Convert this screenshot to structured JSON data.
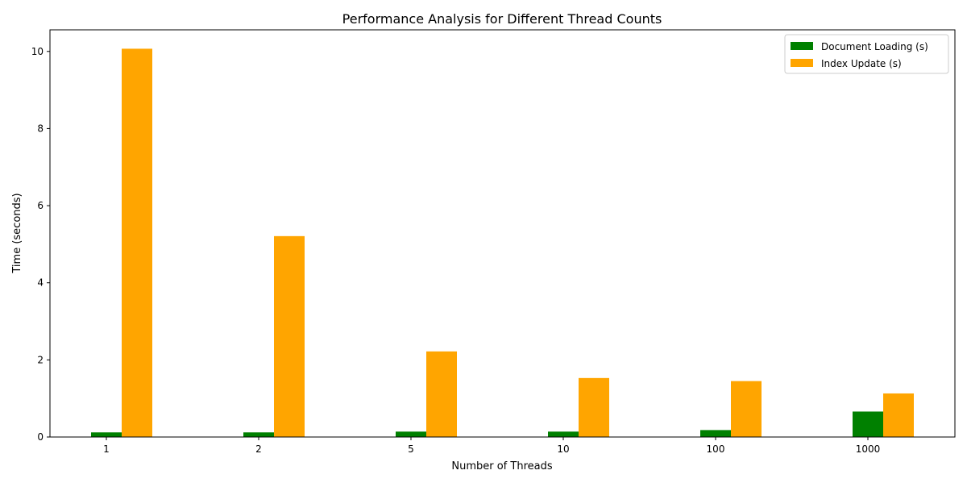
{
  "chart_data": {
    "type": "bar",
    "title": "Performance Analysis for Different Thread Counts",
    "xlabel": "Number of Threads",
    "ylabel": "Time (seconds)",
    "categories": [
      "1",
      "2",
      "5",
      "10",
      "100",
      "1000"
    ],
    "series": [
      {
        "name": "Document Loading (s)",
        "color": "#008000",
        "values": [
          0.12,
          0.12,
          0.14,
          0.14,
          0.18,
          0.66
        ]
      },
      {
        "name": "Index Update (s)",
        "color": "#ffa500",
        "values": [
          10.07,
          5.21,
          2.22,
          1.53,
          1.45,
          1.13
        ]
      }
    ],
    "ylim": [
      0,
      10.56
    ],
    "yticks": [
      0,
      2,
      4,
      6,
      8,
      10
    ],
    "grid": false,
    "legend_position": "top-right"
  }
}
